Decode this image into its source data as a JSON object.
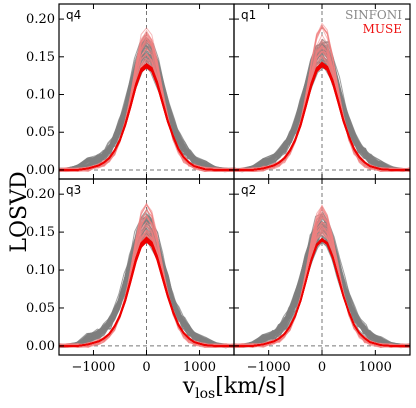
{
  "chart_data": {
    "type": "line",
    "ylabel": "LOSVD",
    "xlabel": "v_los[km/s]",
    "xlabel_main": "v",
    "xlabel_sub": "los",
    "xlabel_unit": "[km/s]",
    "xlim": [
      -1650,
      1650
    ],
    "ylim": [
      -0.012,
      0.22
    ],
    "xticks": [
      -1000,
      0,
      1000
    ],
    "xtick_labels": [
      "−1000",
      "0",
      "1000"
    ],
    "yticks": [
      0.0,
      0.05,
      0.1,
      0.15,
      0.2
    ],
    "ytick_labels": [
      "0.00",
      "0.05",
      "0.10",
      "0.15",
      "0.20"
    ],
    "legend": {
      "placement": "top-right of panel q1",
      "entries": [
        {
          "label": "SINFONI",
          "color": "#888888"
        },
        {
          "label": "MUSE",
          "color": "#ee1111"
        }
      ]
    },
    "reference_lines": {
      "x": 0,
      "y": 0,
      "style": "dashed"
    },
    "series_colors": {
      "SINFONI": "#7f7f7f",
      "MUSE_faint": "#f08080",
      "MUSE_fit": "#ee0000"
    },
    "panels": [
      {
        "label": "q4",
        "x": [
          -1650,
          -1500,
          -1300,
          -1100,
          -900,
          -800,
          -700,
          -600,
          -500,
          -400,
          -300,
          -200,
          -100,
          0,
          100,
          200,
          300,
          400,
          500,
          600,
          700,
          800,
          900,
          1100,
          1300,
          1500,
          1650
        ],
        "SINFONI": {
          "center": [
            0.0,
            0.0,
            0.004,
            0.01,
            0.014,
            0.02,
            0.028,
            0.04,
            0.058,
            0.08,
            0.105,
            0.13,
            0.15,
            0.158,
            0.15,
            0.13,
            0.105,
            0.08,
            0.058,
            0.04,
            0.028,
            0.02,
            0.012,
            0.006,
            0.002,
            0.0,
            0.0
          ],
          "curves": 50,
          "spread": 0.012
        },
        "MUSE": {
          "center": [
            0.0,
            0.0,
            0.0,
            0.002,
            0.006,
            0.01,
            0.016,
            0.026,
            0.04,
            0.06,
            0.085,
            0.112,
            0.132,
            0.138,
            0.133,
            0.115,
            0.09,
            0.065,
            0.045,
            0.028,
            0.017,
            0.01,
            0.005,
            0.001,
            0.0,
            0.0,
            0.0
          ],
          "faint_peak": 0.19,
          "curves": 30,
          "spread": 0.01
        }
      },
      {
        "label": "q1",
        "x": [
          -1650,
          -1500,
          -1300,
          -1100,
          -900,
          -800,
          -700,
          -600,
          -500,
          -400,
          -300,
          -200,
          -100,
          0,
          100,
          200,
          300,
          400,
          500,
          600,
          700,
          800,
          900,
          1100,
          1300,
          1500,
          1650
        ],
        "SINFONI": {
          "center": [
            0.0,
            0.0,
            0.003,
            0.009,
            0.016,
            0.022,
            0.03,
            0.042,
            0.06,
            0.082,
            0.107,
            0.132,
            0.15,
            0.156,
            0.15,
            0.132,
            0.107,
            0.082,
            0.06,
            0.042,
            0.03,
            0.022,
            0.014,
            0.006,
            0.002,
            0.0,
            0.0
          ],
          "curves": 50,
          "spread": 0.012
        },
        "MUSE": {
          "center": [
            0.0,
            0.0,
            0.0,
            0.002,
            0.006,
            0.01,
            0.016,
            0.026,
            0.04,
            0.06,
            0.086,
            0.113,
            0.133,
            0.14,
            0.135,
            0.117,
            0.092,
            0.066,
            0.045,
            0.028,
            0.017,
            0.01,
            0.005,
            0.001,
            0.0,
            0.0,
            0.0
          ],
          "faint_peak": 0.195,
          "curves": 30,
          "spread": 0.01
        }
      },
      {
        "label": "q3",
        "x": [
          -1650,
          -1500,
          -1300,
          -1100,
          -900,
          -800,
          -700,
          -600,
          -500,
          -400,
          -300,
          -200,
          -100,
          0,
          100,
          200,
          300,
          400,
          500,
          600,
          700,
          800,
          900,
          1100,
          1300,
          1500,
          1650
        ],
        "SINFONI": {
          "center": [
            0.0,
            0.0,
            0.003,
            0.01,
            0.016,
            0.022,
            0.03,
            0.042,
            0.06,
            0.082,
            0.107,
            0.132,
            0.15,
            0.158,
            0.15,
            0.132,
            0.107,
            0.082,
            0.06,
            0.042,
            0.03,
            0.021,
            0.013,
            0.006,
            0.002,
            0.0,
            0.0
          ],
          "curves": 50,
          "spread": 0.012
        },
        "MUSE": {
          "center": [
            0.0,
            0.0,
            0.0,
            0.002,
            0.006,
            0.01,
            0.016,
            0.026,
            0.04,
            0.06,
            0.086,
            0.113,
            0.133,
            0.14,
            0.134,
            0.116,
            0.091,
            0.066,
            0.045,
            0.028,
            0.017,
            0.01,
            0.005,
            0.001,
            0.0,
            0.0,
            0.0
          ],
          "faint_peak": 0.19,
          "curves": 30,
          "spread": 0.01
        }
      },
      {
        "label": "q2",
        "x": [
          -1650,
          -1500,
          -1300,
          -1100,
          -900,
          -800,
          -700,
          -600,
          -500,
          -400,
          -300,
          -200,
          -100,
          0,
          100,
          200,
          300,
          400,
          500,
          600,
          700,
          800,
          900,
          1100,
          1300,
          1500,
          1650
        ],
        "SINFONI": {
          "center": [
            0.0,
            0.0,
            0.003,
            0.009,
            0.015,
            0.021,
            0.03,
            0.042,
            0.06,
            0.082,
            0.107,
            0.132,
            0.15,
            0.156,
            0.15,
            0.132,
            0.107,
            0.082,
            0.06,
            0.042,
            0.03,
            0.022,
            0.014,
            0.006,
            0.002,
            0.0,
            0.0
          ],
          "curves": 50,
          "spread": 0.012
        },
        "MUSE": {
          "center": [
            0.0,
            0.0,
            0.0,
            0.002,
            0.006,
            0.01,
            0.016,
            0.026,
            0.04,
            0.06,
            0.086,
            0.113,
            0.133,
            0.14,
            0.135,
            0.117,
            0.092,
            0.066,
            0.045,
            0.028,
            0.017,
            0.01,
            0.005,
            0.001,
            0.0,
            0.0,
            0.0
          ],
          "faint_peak": 0.185,
          "curves": 30,
          "spread": 0.01
        }
      }
    ]
  }
}
